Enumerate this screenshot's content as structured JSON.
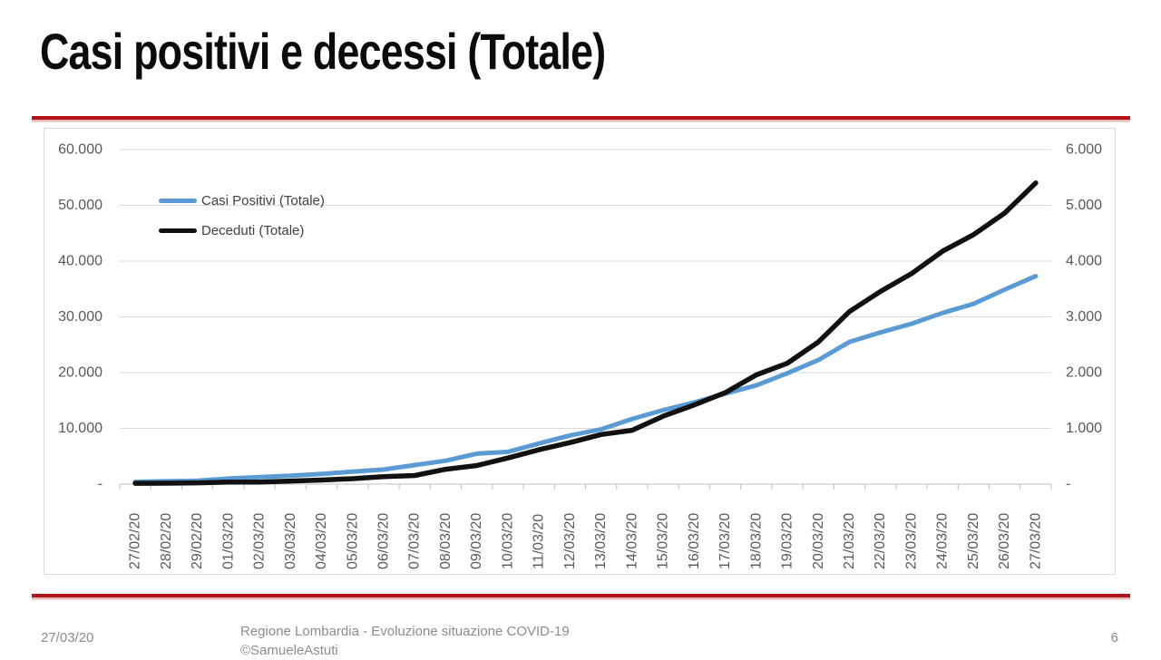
{
  "title": "Casi positivi e decessi (Totale)",
  "footer": {
    "date": "27/03/20",
    "center_line1": "Regione Lombardia - Evoluzione situazione COVID-19",
    "center_line2": "©SamueleAstuti",
    "page_number": "6"
  },
  "colors": {
    "accent_red": "#B01318",
    "series_blue": "#5B9BD5",
    "series_black": "#111111",
    "gridline": "#D9D9D9",
    "axis_line": "#BFBFBF",
    "axis_text": "#595959",
    "legend_text": "#404040",
    "footer_text": "#8C8C8C"
  },
  "chart_data": {
    "type": "line",
    "title": "",
    "grid": true,
    "legend_position": "top-left-inside",
    "categories": [
      "27/02/20",
      "28/02/20",
      "29/02/20",
      "01/03/20",
      "02/03/20",
      "03/03/20",
      "04/03/20",
      "05/03/20",
      "06/03/20",
      "07/03/20",
      "08/03/20",
      "09/03/20",
      "10/03/20",
      "11/03/20",
      "12/03/20",
      "13/03/20",
      "14/03/20",
      "15/03/20",
      "16/03/20",
      "17/03/20",
      "18/03/20",
      "19/03/20",
      "20/03/20",
      "21/03/20",
      "22/03/20",
      "23/03/20",
      "24/03/20",
      "25/03/20",
      "26/03/20",
      "27/03/20"
    ],
    "series": [
      {
        "name": "Casi Positivi (Totale)",
        "axis": "left",
        "color": "#5B9BD5",
        "values": [
          403,
          531,
          615,
          984,
          1254,
          1520,
          1820,
          2251,
          2612,
          3420,
          4189,
          5469,
          5791,
          7280,
          8725,
          9820,
          11685,
          13272,
          14649,
          16220,
          17713,
          19884,
          22264,
          25515,
          27206,
          28761,
          30703,
          32346,
          34889,
          37298
        ]
      },
      {
        "name": "Deceduti (Totale)",
        "axis": "right",
        "color": "#111111",
        "values": [
          14,
          17,
          23,
          38,
          38,
          55,
          73,
          98,
          135,
          154,
          267,
          333,
          468,
          617,
          744,
          890,
          966,
          1218,
          1420,
          1640,
          1959,
          2168,
          2549,
          3095,
          3456,
          3776,
          4178,
          4474,
          4861,
          5402
        ]
      }
    ],
    "left_axis": {
      "min": 0,
      "max": 60000,
      "labels": [
        "-",
        "10.000",
        "20.000",
        "30.000",
        "40.000",
        "50.000",
        "60.000"
      ]
    },
    "right_axis": {
      "min": 0,
      "max": 6000,
      "labels": [
        "-",
        "1.000",
        "2.000",
        "3.000",
        "4.000",
        "5.000",
        "6.000"
      ]
    }
  }
}
